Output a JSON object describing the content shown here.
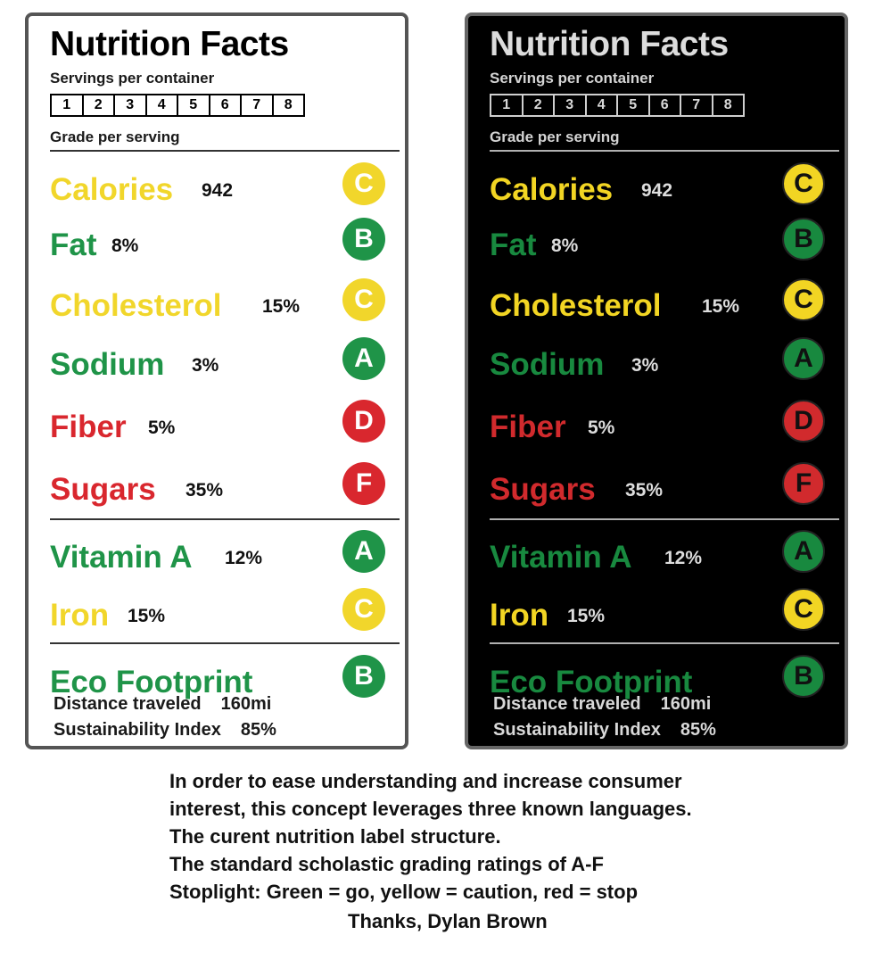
{
  "colors": {
    "green": "#1f9448",
    "yellow": "#f1d62b",
    "red": "#d9272e",
    "dark_green": "#18893f",
    "dark_yellow": "#f2d523",
    "dark_red": "#d12a2d"
  },
  "label": {
    "title": "Nutrition Facts",
    "servings_label": "Servings per container",
    "servings": [
      "1",
      "2",
      "3",
      "4",
      "5",
      "6",
      "7",
      "8"
    ],
    "grade_label": "Grade per serving",
    "nutrients": [
      {
        "name": "Calories",
        "amount": "942",
        "grade": "C",
        "color": "yellow"
      },
      {
        "name": "Fat",
        "amount": "8%",
        "grade": "B",
        "color": "green"
      },
      {
        "name": "Cholesterol",
        "amount": "15%",
        "grade": "C",
        "color": "yellow"
      },
      {
        "name": "Sodium",
        "amount": "3%",
        "grade": "A",
        "color": "green"
      },
      {
        "name": "Fiber",
        "amount": "5%",
        "grade": "D",
        "color": "red"
      },
      {
        "name": "Sugars",
        "amount": "35%",
        "grade": "F",
        "color": "red"
      }
    ],
    "vitamins": [
      {
        "name": "Vitamin A",
        "amount": "12%",
        "grade": "A",
        "color": "green"
      },
      {
        "name": "Iron",
        "amount": "15%",
        "grade": "C",
        "color": "yellow"
      }
    ],
    "eco": {
      "name": "Eco Footprint",
      "grade": "B",
      "color": "green",
      "distance_label": "Distance traveled",
      "distance_value": "160mi",
      "sustainability_label": "Sustainability Index",
      "sustainability_value": "85%"
    }
  },
  "caption": {
    "lines": [
      "In order to ease understanding and increase consumer",
      "interest, this concept leverages three known languages.",
      "The curent nutrition label structure.",
      "The standard scholastic grading ratings of A-F",
      "Stoplight: Green = go, yellow = caution, red = stop"
    ],
    "thanks": "Thanks, Dylan Brown"
  }
}
